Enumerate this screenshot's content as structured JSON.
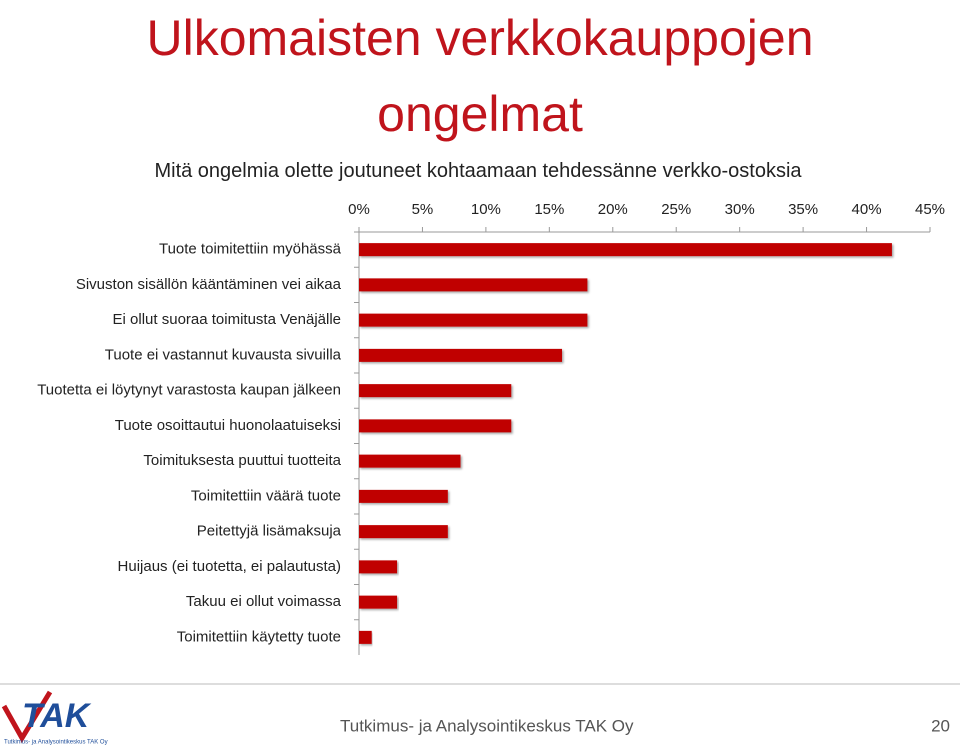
{
  "chart_data": {
    "type": "bar",
    "orientation": "horizontal",
    "title": "Ulkomaisten verkkokauppojen ongelmat",
    "subtitle": "Mitä ongelmia olette joutuneet kohtaamaan tehdessänne verkko-ostoksia",
    "categories": [
      "Tuote toimitettiin myöhässä",
      "Sivuston sisällön kääntäminen vei aikaa",
      "Ei ollut suoraa toimitusta Venäjälle",
      "Tuote ei vastannut kuvausta sivuilla",
      "Tuotetta ei löytynyt varastosta kaupan jälkeen",
      "Tuote osoittautui huonolaatuiseksi",
      "Toimituksesta puuttui tuotteita",
      "Toimitettiin väärä tuote",
      "Peitettyjä lisämaksuja",
      "Huijaus (ei tuotetta, ei palautusta)",
      "Takuu ei ollut voimassa",
      "Toimitettiin käytetty tuote"
    ],
    "values": [
      42,
      18,
      18,
      16,
      12,
      12,
      8,
      7,
      7,
      3,
      3,
      1
    ],
    "color": "#c00000",
    "xlim": [
      0,
      45
    ],
    "xticks": [
      {
        "value": 0,
        "label": "0%"
      },
      {
        "value": 5,
        "label": "5%"
      },
      {
        "value": 10,
        "label": "10%"
      },
      {
        "value": 15,
        "label": "15%"
      },
      {
        "value": 20,
        "label": "20%"
      },
      {
        "value": 25,
        "label": "25%"
      },
      {
        "value": 30,
        "label": "30%"
      },
      {
        "value": 35,
        "label": "35%"
      },
      {
        "value": 40,
        "label": "40%"
      },
      {
        "value": 45,
        "label": "45%"
      }
    ],
    "grid": false
  },
  "footer": {
    "logo_text": "TAK",
    "logo_caption": "Tutkimus- ja Analysointikeskus TAK Oy",
    "text": "Tutkimus- ja Analysointikeskus TAK Oy",
    "page": "20"
  }
}
